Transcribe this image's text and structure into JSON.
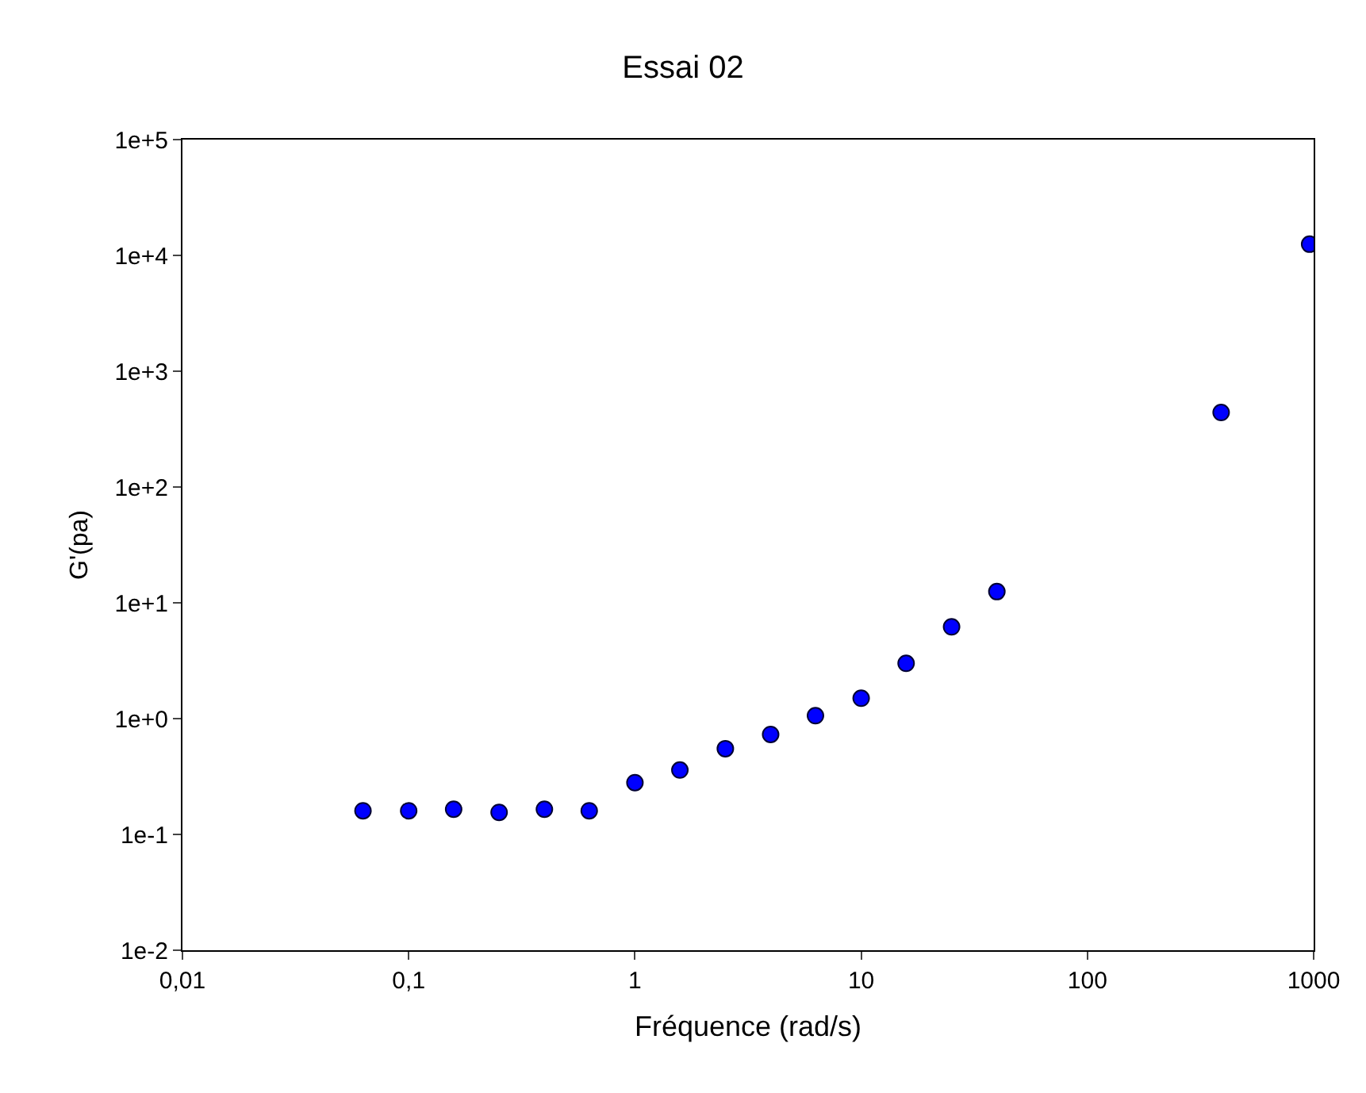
{
  "chart_data": {
    "type": "scatter",
    "title": "Essai 02",
    "xlabel": "Fréquence (rad/s)",
    "ylabel": "G'(pa)",
    "log": "xy",
    "grid": false,
    "legend": false,
    "marker": "circle",
    "x": [
      0.0628,
      0.1,
      0.158,
      0.251,
      0.398,
      0.628,
      1,
      1.58,
      2.51,
      3.98,
      6.28,
      10,
      15.8,
      25.1,
      39.8,
      390,
      960
    ],
    "series": [
      {
        "color": "#0000ff",
        "values": [
          0.16,
          0.16,
          0.165,
          0.155,
          0.165,
          0.16,
          0.28,
          0.36,
          0.55,
          0.73,
          1.06,
          1.5,
          3.0,
          6.2,
          12.5,
          440,
          12500
        ]
      }
    ],
    "xlim": [
      0.01,
      1000
    ],
    "ylim": [
      0.01,
      100000
    ],
    "xticks": [
      {
        "value": 0.01,
        "label": "0,01"
      },
      {
        "value": 0.1,
        "label": "0,1"
      },
      1,
      10,
      100,
      1000
    ],
    "yticks": [
      {
        "value": 0.01,
        "label": "1e-2"
      },
      {
        "value": 0.1,
        "label": "1e-1"
      },
      {
        "value": 1,
        "label": "1e+0"
      },
      {
        "value": 10,
        "label": "1e+1"
      },
      {
        "value": 100,
        "label": "1e+2"
      },
      {
        "value": 1000,
        "label": "1e+3"
      },
      {
        "value": 10000,
        "label": "1e+4"
      },
      {
        "value": 100000,
        "label": "1e+5"
      }
    ]
  }
}
